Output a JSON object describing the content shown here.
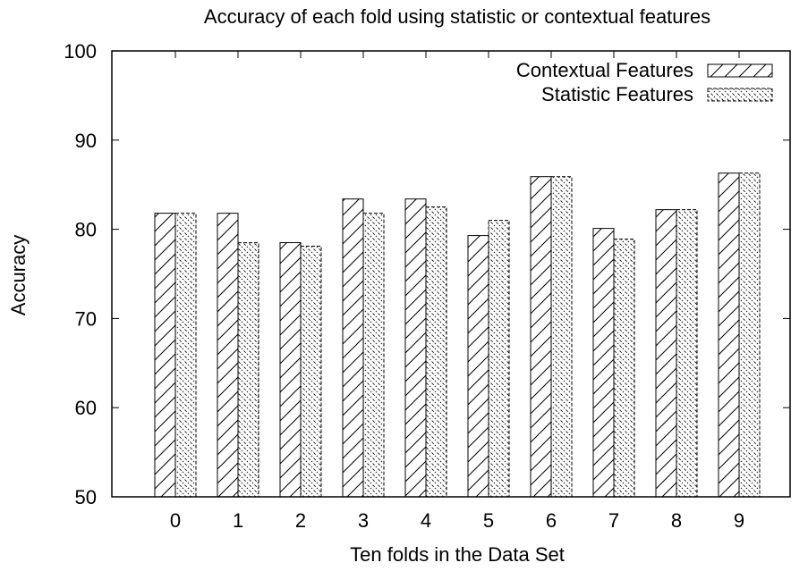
{
  "chart_data": {
    "type": "bar",
    "title": "Accuracy of each fold using statistic or contextual features",
    "xlabel": "Ten folds in the Data Set",
    "ylabel": "Accuracy",
    "categories": [
      "0",
      "1",
      "2",
      "3",
      "4",
      "5",
      "6",
      "7",
      "8",
      "9"
    ],
    "yticks": [
      "50",
      "60",
      "70",
      "80",
      "90",
      "100"
    ],
    "ylim": [
      50,
      100
    ],
    "grid": false,
    "legend_position": "top-right",
    "series": [
      {
        "name": "Contextual Features",
        "pattern": "hatch-right",
        "values": [
          81.8,
          81.8,
          78.5,
          83.4,
          83.4,
          79.3,
          85.9,
          80.1,
          82.2,
          86.3
        ]
      },
      {
        "name": "Statistic Features",
        "pattern": "hatch-left-dashed",
        "values": [
          81.8,
          78.5,
          78.1,
          81.8,
          82.5,
          81.0,
          85.9,
          78.9,
          82.2,
          86.3
        ]
      }
    ]
  }
}
